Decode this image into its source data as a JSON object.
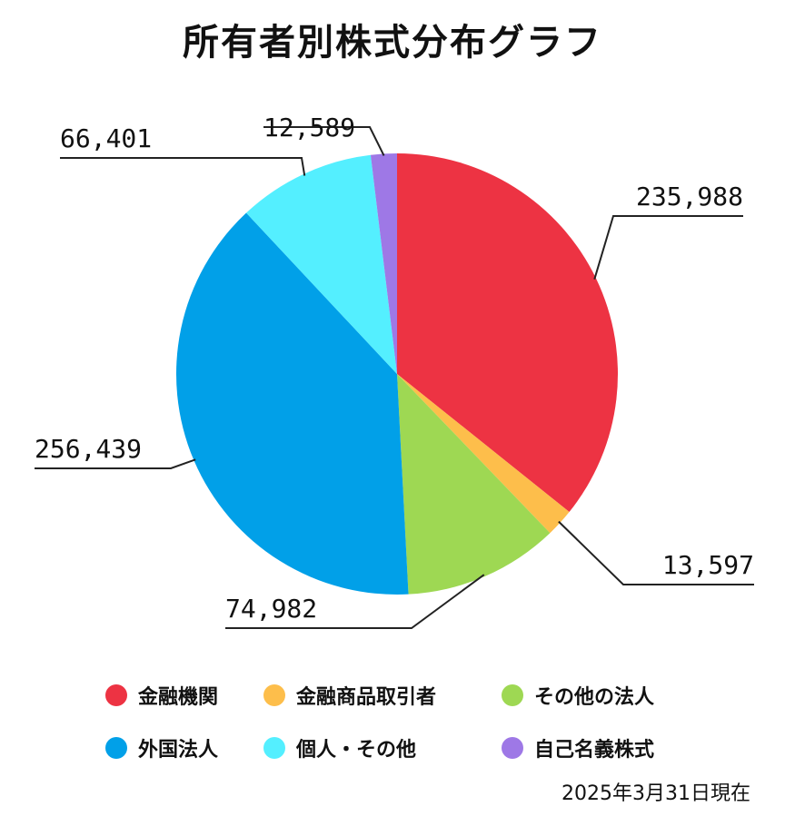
{
  "chart_data": {
    "type": "pie",
    "title": "所有者別株式分布グラフ",
    "categories": [
      "金融機関",
      "金融商品取引者",
      "その他の法人",
      "外国法人",
      "個人・その他",
      "自己名義株式"
    ],
    "values": [
      235988,
      13597,
      74982,
      256439,
      66401,
      12589
    ],
    "value_labels": [
      "235,988",
      "13,597",
      "74,982",
      "256,439",
      "66,401",
      "12,589"
    ],
    "colors": [
      "#ED3343",
      "#FDBE4B",
      "#9ED853",
      "#01A0E8",
      "#54EFFF",
      "#9E78E6"
    ],
    "start_angle_deg": 0,
    "direction": "clockwise",
    "legend_position": "bottom",
    "note": "2025年3月31日現在"
  }
}
